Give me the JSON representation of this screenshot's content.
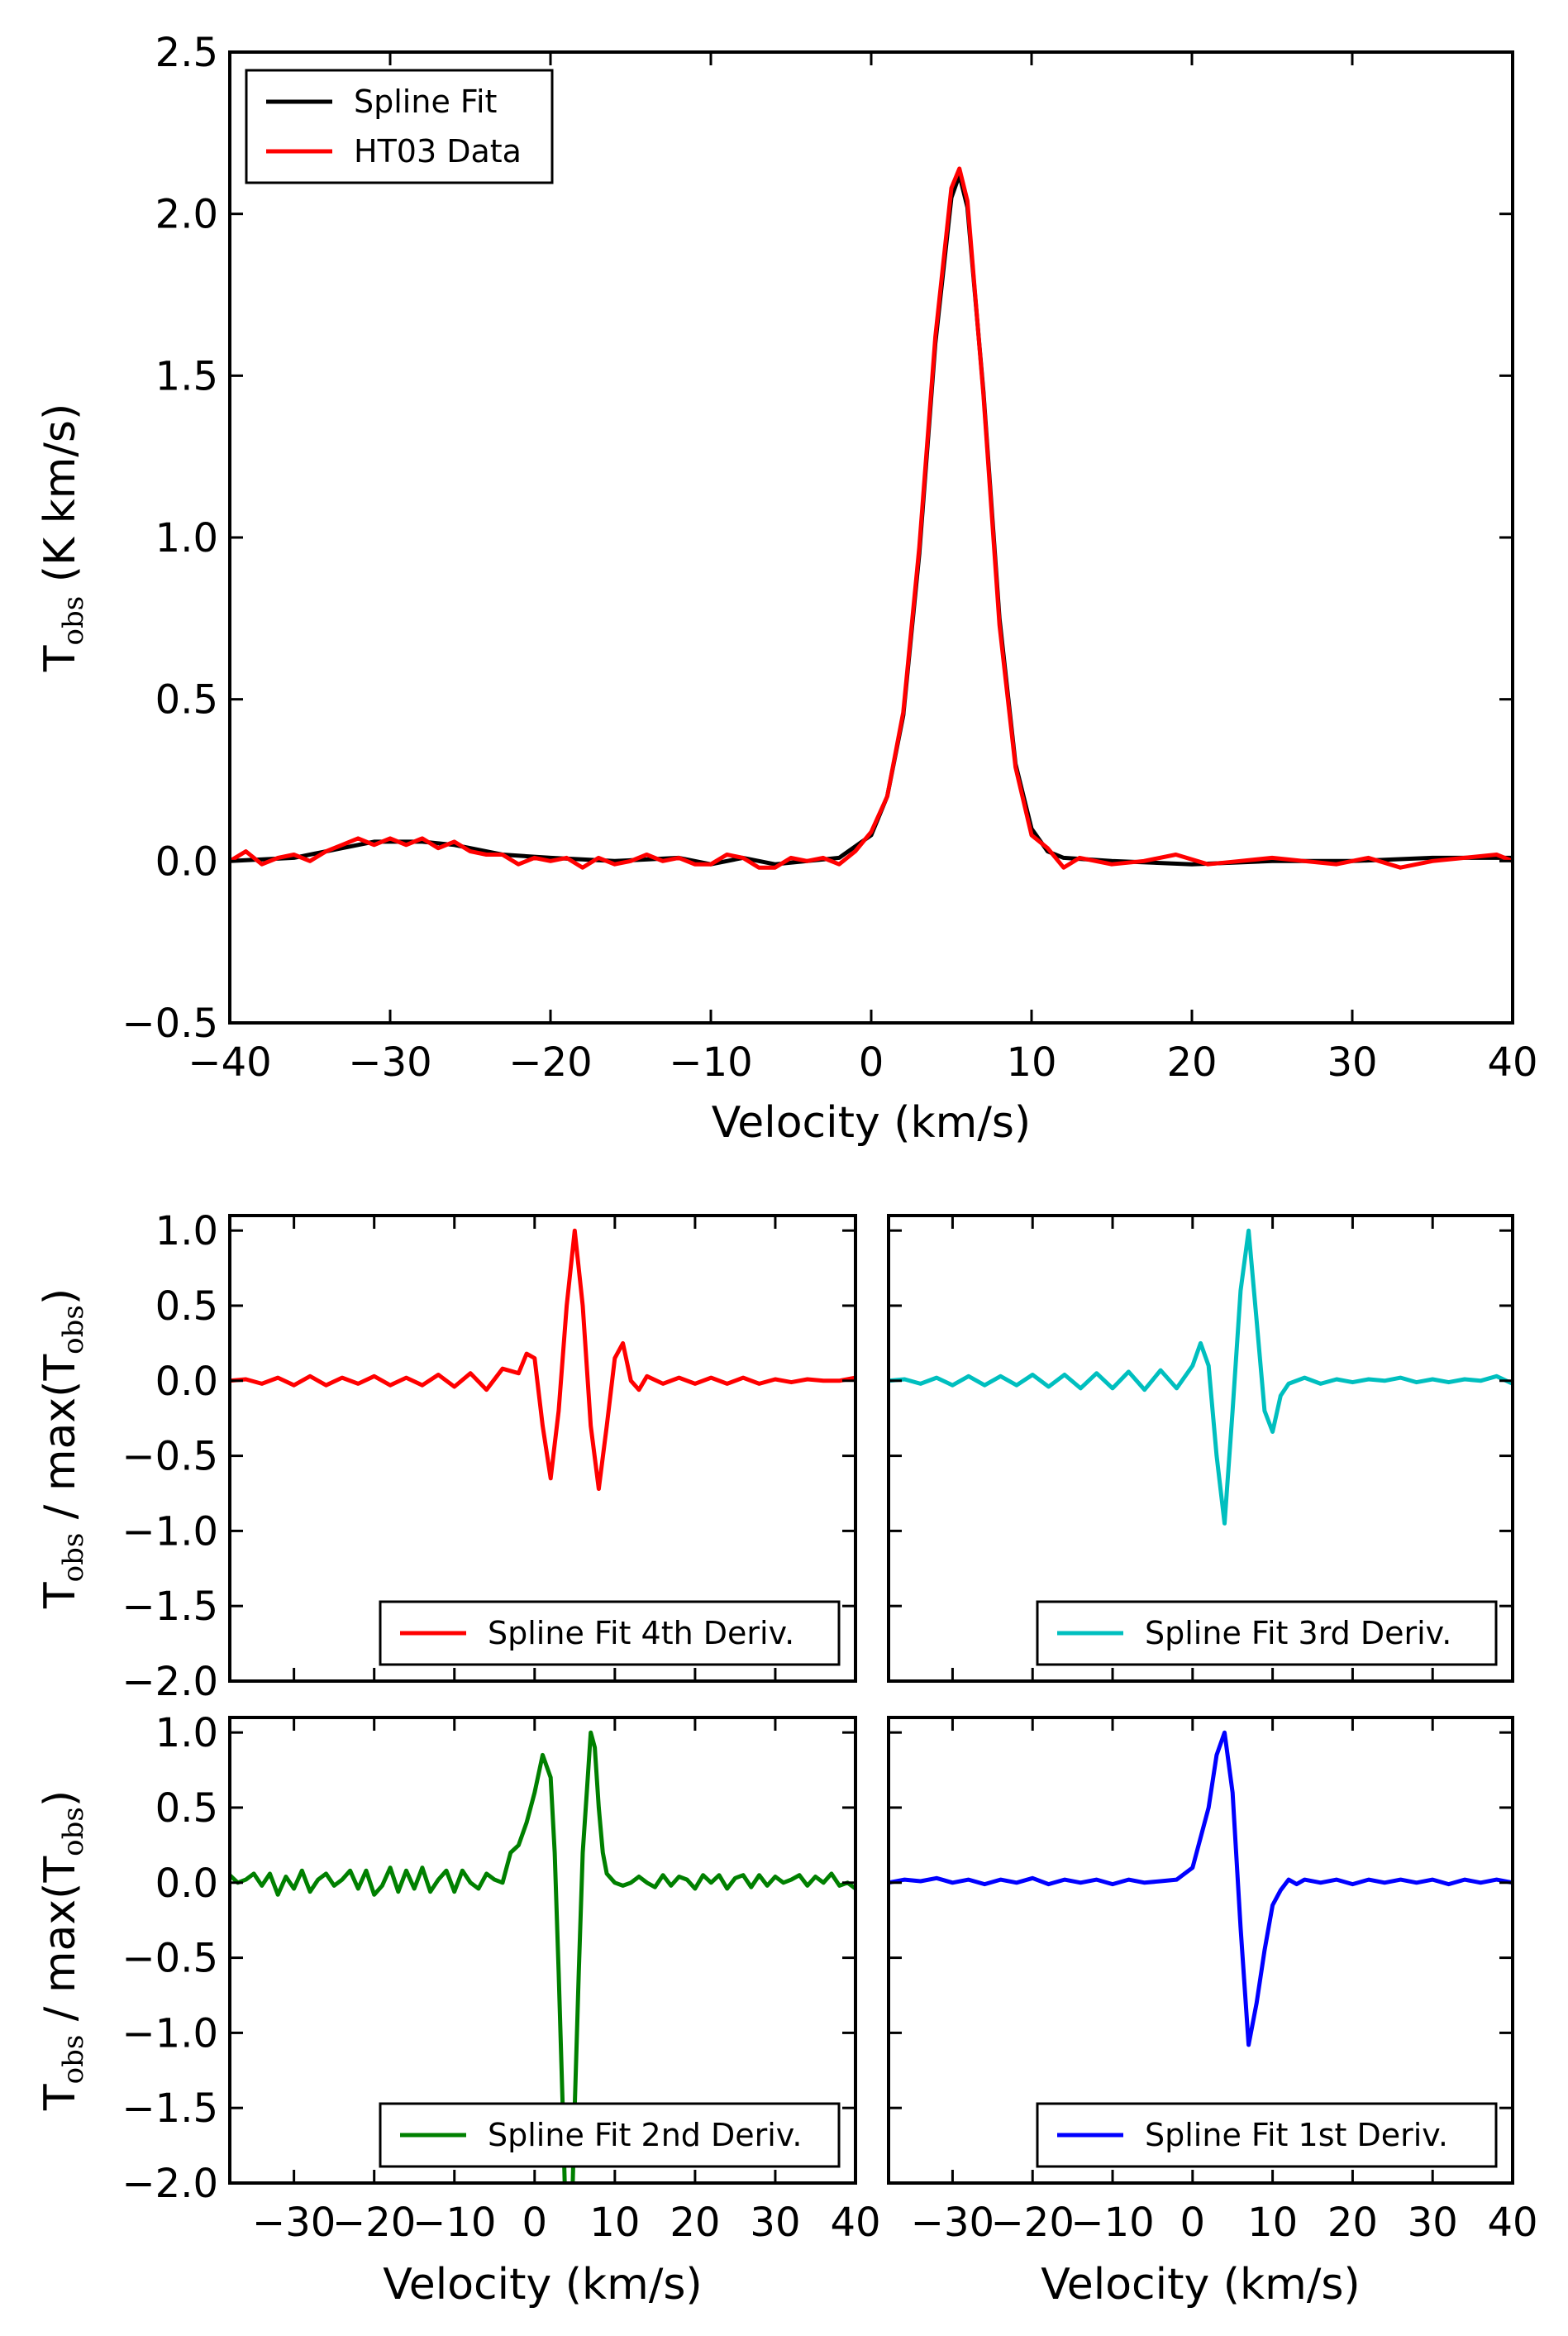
{
  "chart_data": [
    {
      "type": "line",
      "title": "",
      "xlabel": "Velocity (km/s)",
      "ylabel": {
        "prefix": "T",
        "sub": "obs",
        "suffix": " (K km/s)"
      },
      "xlim": [
        -40,
        40
      ],
      "ylim": [
        -0.5,
        2.5
      ],
      "xticks": [
        -40,
        -30,
        -20,
        -10,
        0,
        10,
        20,
        30,
        40
      ],
      "xtick_labels": [
        "−40",
        "−30",
        "−20",
        "−10",
        "0",
        "10",
        "20",
        "30",
        "40"
      ],
      "yticks": [
        -0.5,
        0.0,
        0.5,
        1.0,
        1.5,
        2.0,
        2.5
      ],
      "ytick_labels": [
        "−0.5",
        "0.0",
        "0.5",
        "1.0",
        "1.5",
        "2.0",
        "2.5"
      ],
      "grid": false,
      "legend": "top-left",
      "series": [
        {
          "name": "Spline Fit",
          "color": "#000000",
          "x": [
            -40,
            -36,
            -33,
            -31,
            -28,
            -26,
            -23,
            -20,
            -16,
            -12,
            -10,
            -8,
            -6,
            -4,
            -2,
            0,
            1,
            2,
            3,
            4,
            5,
            5.5,
            6,
            7,
            8,
            9,
            10,
            11,
            12,
            15,
            20,
            25,
            30,
            35,
            40
          ],
          "y": [
            0.0,
            0.01,
            0.04,
            0.06,
            0.06,
            0.05,
            0.02,
            0.01,
            0.0,
            0.01,
            -0.01,
            0.01,
            -0.01,
            0.0,
            0.01,
            0.08,
            0.2,
            0.45,
            0.95,
            1.6,
            2.05,
            2.12,
            2.02,
            1.45,
            0.75,
            0.3,
            0.1,
            0.03,
            0.01,
            0.0,
            -0.01,
            0.0,
            0.0,
            0.01,
            0.01
          ]
        },
        {
          "name": "HT03 Data",
          "color": "#ff0000",
          "x": [
            -40,
            -39,
            -38,
            -37,
            -36,
            -35,
            -34,
            -33,
            -32,
            -31,
            -30,
            -29,
            -28,
            -27,
            -26,
            -25,
            -24,
            -23,
            -22,
            -21,
            -20,
            -19,
            -18,
            -17,
            -16,
            -15,
            -14,
            -13,
            -12,
            -11,
            -10,
            -9,
            -8,
            -7,
            -6,
            -5,
            -4,
            -3,
            -2,
            -1,
            0,
            1,
            2,
            3,
            4,
            5,
            5.5,
            6,
            7,
            8,
            9,
            10,
            11,
            12,
            13,
            14,
            15,
            17,
            19,
            21,
            23,
            25,
            27,
            29,
            31,
            33,
            35,
            37,
            39,
            40
          ],
          "y": [
            0.0,
            0.03,
            -0.01,
            0.01,
            0.02,
            0.0,
            0.03,
            0.05,
            0.07,
            0.05,
            0.07,
            0.05,
            0.07,
            0.04,
            0.06,
            0.03,
            0.02,
            0.02,
            -0.01,
            0.01,
            0.0,
            0.01,
            -0.02,
            0.01,
            -0.01,
            0.0,
            0.02,
            0.0,
            0.01,
            -0.01,
            -0.01,
            0.02,
            0.01,
            -0.02,
            -0.02,
            0.01,
            0.0,
            0.01,
            -0.01,
            0.03,
            0.09,
            0.2,
            0.46,
            0.97,
            1.62,
            2.08,
            2.14,
            2.04,
            1.44,
            0.73,
            0.29,
            0.08,
            0.04,
            -0.02,
            0.01,
            0.0,
            -0.01,
            0.0,
            0.02,
            -0.01,
            0.0,
            0.01,
            0.0,
            -0.01,
            0.01,
            -0.02,
            0.0,
            0.01,
            0.02,
            0.0
          ]
        }
      ]
    },
    {
      "type": "line",
      "xlabel": "",
      "ylabel": {
        "prefix": "T",
        "sub": "obs",
        "mid": " / max(T",
        "sub2": "obs",
        "suffix": ")"
      },
      "xlim": [
        -38,
        40
      ],
      "ylim": [
        -2.0,
        1.1
      ],
      "yticks": [
        -2.0,
        -1.5,
        -1.0,
        -0.5,
        0.0,
        0.5,
        1.0
      ],
      "ytick_labels": [
        "−2.0",
        "−1.5",
        "−1.0",
        "−0.5",
        "0.0",
        "0.5",
        "1.0"
      ],
      "legend": "bottom-right",
      "series": [
        {
          "name": "Spline Fit 4th Deriv.",
          "color": "#ff0000",
          "x": [
            -38,
            -36,
            -34,
            -32,
            -30,
            -28,
            -26,
            -24,
            -22,
            -20,
            -18,
            -16,
            -14,
            -12,
            -10,
            -8,
            -6,
            -4,
            -2,
            -1,
            0,
            1,
            2,
            3,
            4,
            5,
            6,
            7,
            8,
            9,
            10,
            11,
            12,
            13,
            14,
            16,
            18,
            20,
            22,
            24,
            26,
            28,
            30,
            32,
            34,
            36,
            38,
            40
          ],
          "y": [
            0.0,
            0.01,
            -0.02,
            0.02,
            -0.03,
            0.03,
            -0.03,
            0.02,
            -0.02,
            0.03,
            -0.03,
            0.02,
            -0.03,
            0.04,
            -0.04,
            0.05,
            -0.06,
            0.08,
            0.05,
            0.18,
            0.15,
            -0.3,
            -0.65,
            -0.2,
            0.5,
            1.0,
            0.5,
            -0.3,
            -0.72,
            -0.3,
            0.15,
            0.25,
            0.0,
            -0.06,
            0.03,
            -0.02,
            0.02,
            -0.02,
            0.02,
            -0.02,
            0.02,
            -0.02,
            0.01,
            -0.01,
            0.01,
            0.0,
            0.0,
            0.02
          ]
        },
        {
          "name": "Spline Fit 3rd Deriv.",
          "color": "#00bfbf",
          "x": [
            -38,
            -36,
            -34,
            -32,
            -30,
            -28,
            -26,
            -24,
            -22,
            -20,
            -18,
            -16,
            -14,
            -12,
            -10,
            -8,
            -6,
            -4,
            -2,
            0,
            1,
            2,
            3,
            4,
            5,
            6,
            7,
            8,
            9,
            10,
            11,
            12,
            14,
            16,
            18,
            20,
            22,
            24,
            26,
            28,
            30,
            32,
            34,
            36,
            38,
            40
          ],
          "y": [
            0.0,
            0.01,
            -0.02,
            0.02,
            -0.03,
            0.03,
            -0.03,
            0.03,
            -0.03,
            0.04,
            -0.04,
            0.04,
            -0.05,
            0.05,
            -0.05,
            0.06,
            -0.06,
            0.07,
            -0.05,
            0.1,
            0.25,
            0.1,
            -0.5,
            -0.95,
            -0.2,
            0.6,
            1.0,
            0.4,
            -0.2,
            -0.34,
            -0.1,
            -0.02,
            0.02,
            -0.02,
            0.01,
            -0.01,
            0.01,
            0.0,
            0.02,
            -0.01,
            0.01,
            -0.01,
            0.01,
            0.0,
            0.03,
            -0.02
          ]
        }
      ]
    },
    {
      "type": "line",
      "xlabel": "Velocity (km/s)",
      "ylabel": {
        "prefix": "T",
        "sub": "obs",
        "mid": " / max(T",
        "sub2": "obs",
        "suffix": ")"
      },
      "xlim": [
        -38,
        40
      ],
      "ylim": [
        -2.0,
        1.1
      ],
      "xticks": [
        -30,
        -20,
        -10,
        0,
        10,
        20,
        30,
        40
      ],
      "xtick_labels": [
        "−30",
        "−20",
        "−10",
        "0",
        "10",
        "20",
        "30",
        "40"
      ],
      "yticks": [
        -2.0,
        -1.5,
        -1.0,
        -0.5,
        0.0,
        0.5,
        1.0
      ],
      "ytick_labels": [
        "−2.0",
        "−1.5",
        "−1.0",
        "−0.5",
        "0.0",
        "0.5",
        "1.0"
      ],
      "legend": "bottom-right",
      "series": [
        {
          "name": "Spline Fit 2nd Deriv.",
          "color": "#008000",
          "x": [
            -38,
            -37,
            -36,
            -35,
            -34,
            -33,
            -32,
            -31,
            -30,
            -29,
            -28,
            -27,
            -26,
            -25,
            -24,
            -23,
            -22,
            -21,
            -20,
            -19,
            -18,
            -17,
            -16,
            -15,
            -14,
            -13,
            -12,
            -11,
            -10,
            -9,
            -8,
            -7,
            -6,
            -5,
            -4,
            -3,
            -2,
            -1,
            0,
            1,
            2,
            2.5,
            3,
            3.5,
            4,
            4.5,
            5,
            5.5,
            6,
            6.5,
            7,
            7.5,
            8,
            8.5,
            9,
            10,
            11,
            12,
            13,
            14,
            15,
            16,
            17,
            18,
            19,
            20,
            21,
            22,
            23,
            24,
            25,
            26,
            27,
            28,
            29,
            30,
            31,
            32,
            33,
            34,
            35,
            36,
            37,
            38,
            39,
            40
          ],
          "y": [
            0.05,
            0.0,
            0.02,
            0.06,
            -0.02,
            0.06,
            -0.08,
            0.04,
            -0.04,
            0.08,
            -0.06,
            0.02,
            0.06,
            -0.02,
            0.02,
            0.08,
            -0.04,
            0.08,
            -0.08,
            -0.02,
            0.1,
            -0.06,
            0.08,
            -0.04,
            0.1,
            -0.06,
            0.02,
            0.08,
            -0.06,
            0.08,
            0.0,
            -0.04,
            0.06,
            0.02,
            0.0,
            0.2,
            0.25,
            0.4,
            0.6,
            0.85,
            0.7,
            0.2,
            -0.6,
            -1.5,
            -2.5,
            -2.5,
            -1.5,
            -0.6,
            0.2,
            0.6,
            1.0,
            0.9,
            0.5,
            0.2,
            0.06,
            0.0,
            -0.02,
            0.0,
            0.04,
            0.0,
            -0.03,
            0.05,
            -0.02,
            0.04,
            0.02,
            -0.04,
            0.05,
            0.0,
            0.05,
            -0.04,
            0.03,
            0.05,
            -0.03,
            0.05,
            -0.02,
            0.04,
            0.0,
            0.02,
            0.05,
            -0.02,
            0.04,
            0.0,
            0.06,
            -0.02,
            0.0,
            -0.04
          ]
        },
        {
          "name": "Spline Fit 1st Deriv.",
          "color": "#0000ff",
          "x": [
            -38,
            -36,
            -34,
            -32,
            -30,
            -28,
            -26,
            -24,
            -22,
            -20,
            -18,
            -16,
            -14,
            -12,
            -10,
            -8,
            -6,
            -4,
            -2,
            0,
            1,
            2,
            3,
            4,
            5,
            6,
            7,
            8,
            9,
            10,
            11,
            12,
            13,
            14,
            16,
            18,
            20,
            22,
            24,
            26,
            28,
            30,
            32,
            34,
            36,
            38,
            40
          ],
          "y": [
            0.0,
            0.02,
            0.01,
            0.03,
            0.0,
            0.02,
            -0.01,
            0.02,
            0.0,
            0.03,
            -0.01,
            0.02,
            0.0,
            0.02,
            -0.01,
            0.02,
            0.0,
            0.01,
            0.02,
            0.1,
            0.3,
            0.5,
            0.85,
            1.0,
            0.6,
            -0.3,
            -1.08,
            -0.8,
            -0.45,
            -0.15,
            -0.05,
            0.02,
            -0.01,
            0.02,
            0.0,
            0.02,
            -0.01,
            0.02,
            0.0,
            0.02,
            0.0,
            0.02,
            -0.01,
            0.02,
            0.0,
            0.02,
            0.0
          ]
        }
      ]
    }
  ]
}
